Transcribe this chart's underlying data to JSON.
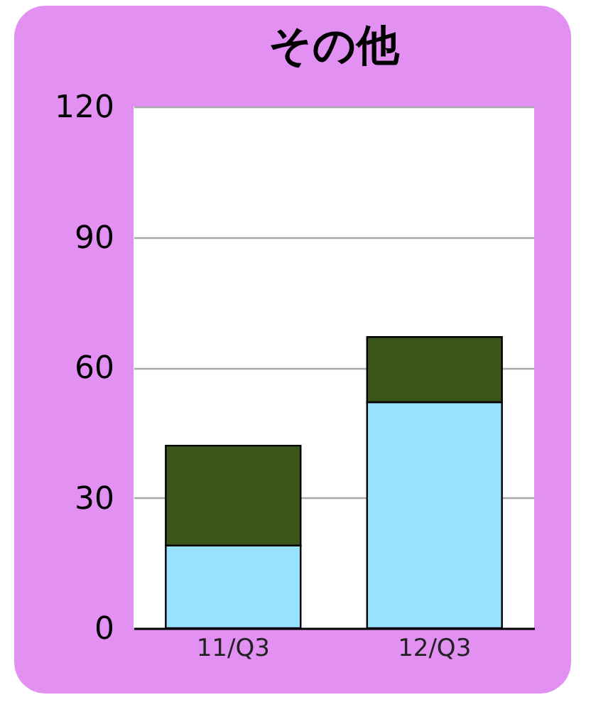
{
  "chart_data": {
    "type": "bar",
    "title": "その他",
    "categories": [
      "11/Q3",
      "12/Q3"
    ],
    "stacked": true,
    "series": [
      {
        "color": "#99e2ff",
        "values": [
          19,
          52
        ]
      },
      {
        "color": "#3a561b",
        "values": [
          23,
          15
        ]
      }
    ],
    "ylim": [
      0,
      120
    ],
    "yticks": [
      0,
      30,
      60,
      90,
      120
    ],
    "grid": "y"
  }
}
